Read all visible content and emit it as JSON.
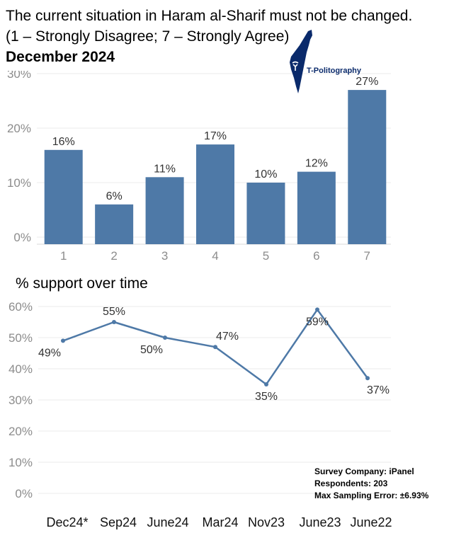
{
  "header": {
    "title_line1": "The current situation in Haram al-Sharif must not be changed.",
    "title_line2": "(1 – Strongly Disagree; 7 – Strongly Agree)",
    "date": "December 2024"
  },
  "logo": {
    "text": "T-Politography",
    "icon": "israel-map-icon"
  },
  "line_section_label": "% support over time",
  "footer": {
    "company": "Survey Company: iPanel",
    "respondents": "Respondents: 203",
    "error": "Max Sampling Error: ±6.93%"
  },
  "colors": {
    "bar": "#4e79a7",
    "line": "#4e79a7",
    "grid": "#ebebeb",
    "tick": "#8c8c8c",
    "label": "#333333",
    "logo": "#0a2a6b"
  },
  "chart_data": [
    {
      "type": "bar",
      "categories": [
        "1",
        "2",
        "3",
        "4",
        "5",
        "6",
        "7"
      ],
      "values": [
        16,
        6,
        11,
        17,
        10,
        12,
        27
      ],
      "value_labels": [
        "16%",
        "6%",
        "11%",
        "17%",
        "10%",
        "12%",
        "27%"
      ],
      "y_ticks": [
        0,
        10,
        20,
        30
      ],
      "y_tick_labels": [
        "0%",
        "10%",
        "20%",
        "30%"
      ],
      "ylim": [
        0,
        30
      ],
      "grid": true
    },
    {
      "type": "line",
      "categories": [
        "Dec24*",
        "Sep24",
        "June24",
        "Mar24",
        "Nov23",
        "June23",
        "June22"
      ],
      "values": [
        49,
        55,
        50,
        47,
        35,
        59,
        37
      ],
      "value_labels": [
        "49%",
        "55%",
        "50%",
        "47%",
        "35%",
        "59%",
        "37%"
      ],
      "y_ticks": [
        0,
        10,
        20,
        30,
        40,
        50,
        60
      ],
      "y_tick_labels": [
        "0%",
        "10%",
        "20%",
        "30%",
        "40%",
        "50%",
        "60%"
      ],
      "ylim": [
        0,
        60
      ],
      "grid": true
    }
  ]
}
